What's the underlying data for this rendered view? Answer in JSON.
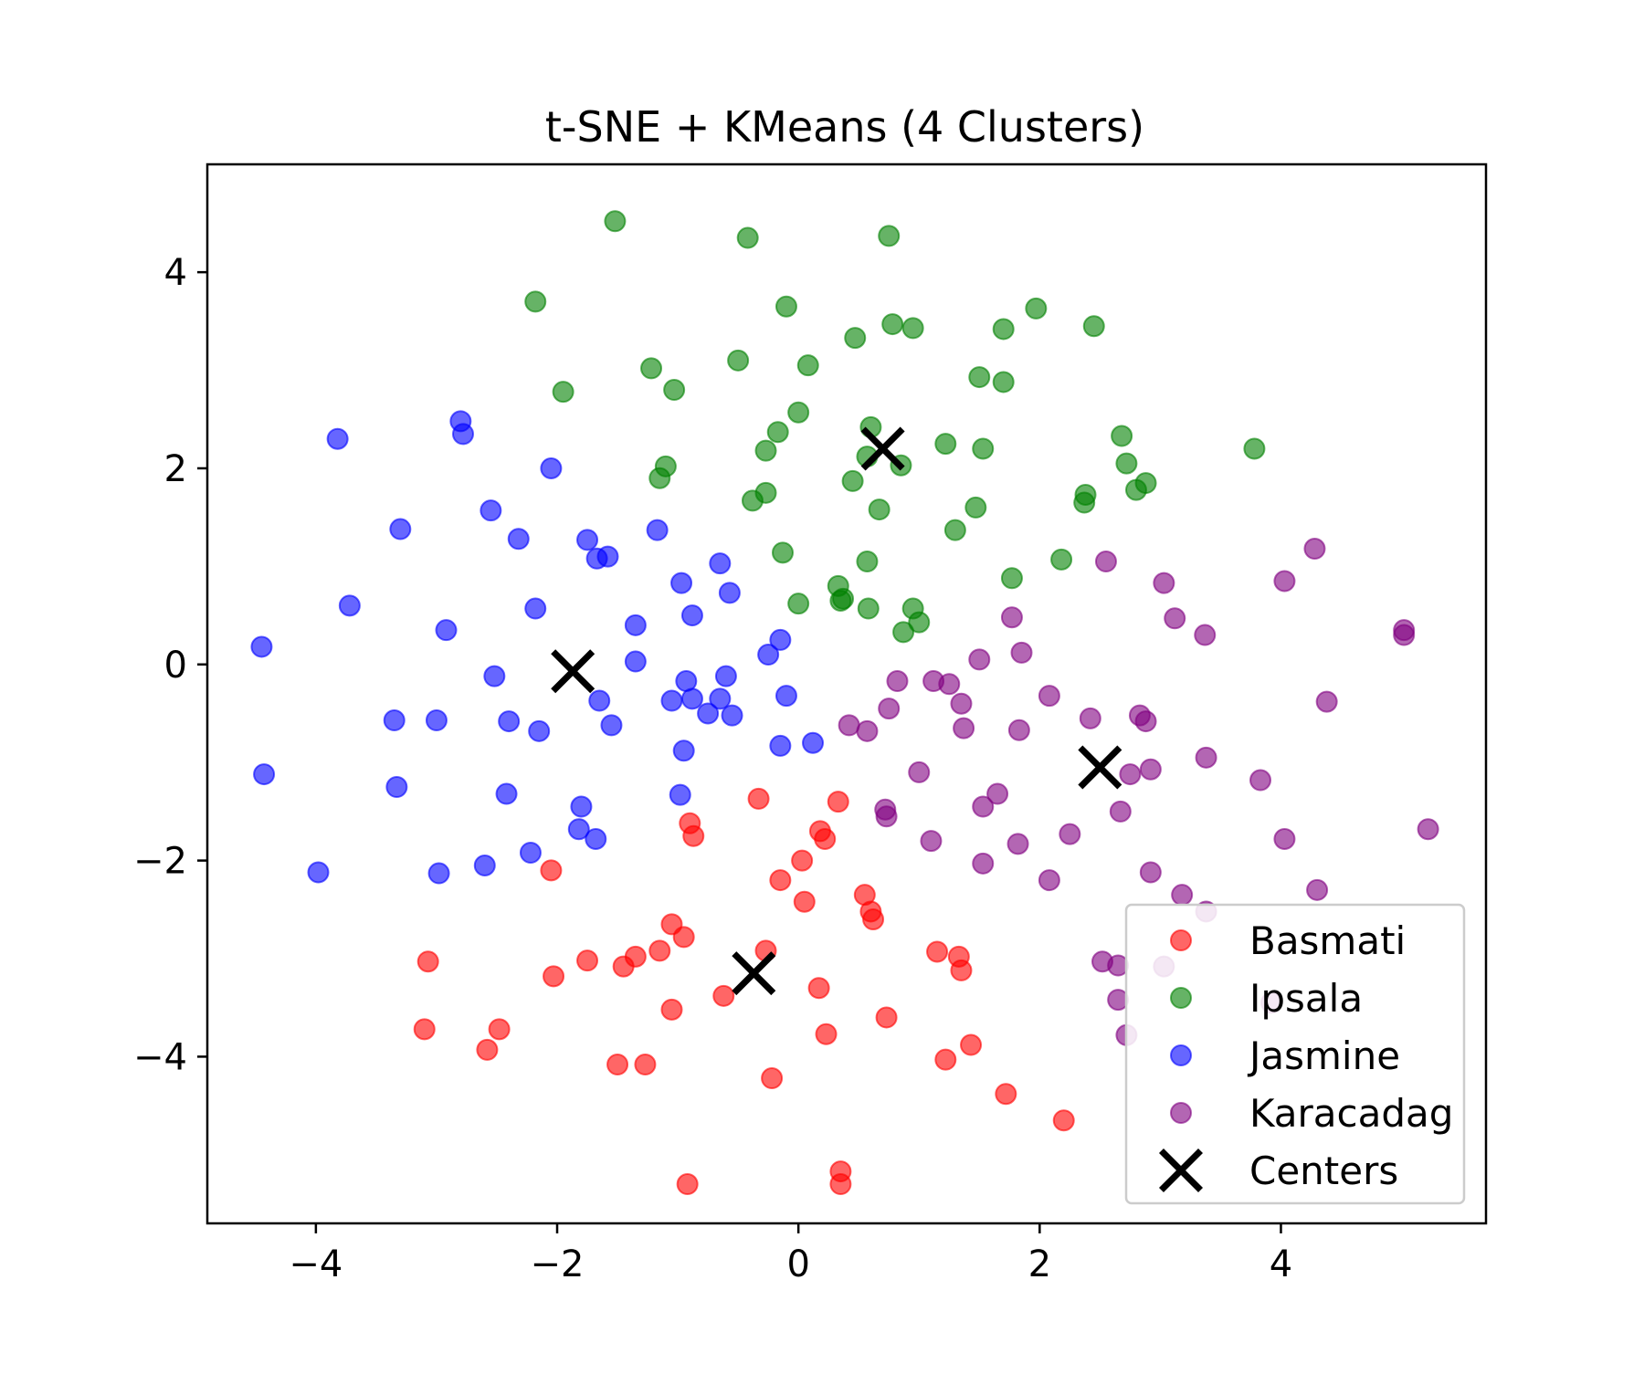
{
  "chart_data": {
    "type": "scatter",
    "title": "t-SNE + KMeans (4 Clusters)",
    "xlabel": "",
    "ylabel": "",
    "xlim": [
      -4.9,
      5.7
    ],
    "ylim": [
      -5.7,
      5.1
    ],
    "xticks": [
      -4,
      -2,
      0,
      2,
      4
    ],
    "xtick_labels": [
      "−4",
      "−2",
      "0",
      "2",
      "4"
    ],
    "yticks": [
      4,
      2,
      0,
      -2,
      -4
    ],
    "ytick_labels": [
      "4",
      "2",
      "0",
      "−2",
      "−4"
    ],
    "grid": false,
    "legend_position": "lower right",
    "marker_alpha": 0.6,
    "series": [
      {
        "name": "Basmati",
        "color": "#ff0000",
        "marker": "circle",
        "points": [
          [
            -2.05,
            -2.1
          ],
          [
            -2.03,
            -3.18
          ],
          [
            -1.75,
            -3.02
          ],
          [
            -1.45,
            -3.08
          ],
          [
            -1.35,
            -2.98
          ],
          [
            -1.15,
            -2.92
          ],
          [
            -1.05,
            -2.65
          ],
          [
            -0.95,
            -2.78
          ],
          [
            -0.9,
            -1.62
          ],
          [
            -0.87,
            -1.75
          ],
          [
            -1.05,
            -3.52
          ],
          [
            -1.5,
            -4.08
          ],
          [
            -1.27,
            -4.08
          ],
          [
            -0.92,
            -5.3
          ],
          [
            -0.62,
            -3.38
          ],
          [
            -0.27,
            -2.92
          ],
          [
            -0.33,
            -1.37
          ],
          [
            -0.15,
            -2.2
          ],
          [
            0.03,
            -2.0
          ],
          [
            0.05,
            -2.42
          ],
          [
            0.18,
            -1.7
          ],
          [
            0.22,
            -1.78
          ],
          [
            0.33,
            -1.4
          ],
          [
            0.55,
            -2.35
          ],
          [
            0.6,
            -2.52
          ],
          [
            0.62,
            -2.6
          ],
          [
            0.17,
            -3.3
          ],
          [
            0.23,
            -3.77
          ],
          [
            -0.22,
            -4.22
          ],
          [
            0.35,
            -5.17
          ],
          [
            0.35,
            -5.3
          ],
          [
            0.73,
            -3.6
          ],
          [
            1.15,
            -2.93
          ],
          [
            1.33,
            -2.98
          ],
          [
            1.35,
            -3.12
          ],
          [
            1.22,
            -4.03
          ],
          [
            1.43,
            -3.88
          ],
          [
            1.72,
            -4.38
          ],
          [
            2.2,
            -4.65
          ],
          [
            -3.07,
            -3.03
          ],
          [
            -3.1,
            -3.72
          ],
          [
            -2.48,
            -3.72
          ],
          [
            -2.58,
            -3.93
          ]
        ]
      },
      {
        "name": "Ipsala",
        "color": "#008000",
        "marker": "circle",
        "points": [
          [
            -1.52,
            4.52
          ],
          [
            -2.18,
            3.7
          ],
          [
            -1.95,
            2.78
          ],
          [
            -1.22,
            3.02
          ],
          [
            -1.03,
            2.8
          ],
          [
            -1.1,
            2.02
          ],
          [
            -1.15,
            1.9
          ],
          [
            -0.42,
            4.35
          ],
          [
            -0.5,
            3.1
          ],
          [
            -0.1,
            3.65
          ],
          [
            0.08,
            3.05
          ],
          [
            0.0,
            2.57
          ],
          [
            -0.17,
            2.37
          ],
          [
            -0.27,
            2.18
          ],
          [
            -0.27,
            1.75
          ],
          [
            -0.38,
            1.67
          ],
          [
            -0.13,
            1.14
          ],
          [
            0.0,
            0.62
          ],
          [
            0.47,
            3.33
          ],
          [
            0.6,
            2.42
          ],
          [
            0.75,
            4.37
          ],
          [
            0.78,
            3.47
          ],
          [
            0.95,
            3.43
          ],
          [
            0.57,
            2.12
          ],
          [
            0.85,
            2.03
          ],
          [
            0.45,
            1.87
          ],
          [
            0.67,
            1.58
          ],
          [
            0.57,
            1.05
          ],
          [
            0.33,
            0.8
          ],
          [
            0.37,
            0.67
          ],
          [
            0.35,
            0.65
          ],
          [
            0.58,
            0.57
          ],
          [
            0.95,
            0.57
          ],
          [
            1.0,
            0.43
          ],
          [
            0.87,
            0.33
          ],
          [
            1.22,
            2.25
          ],
          [
            1.53,
            2.2
          ],
          [
            1.5,
            2.93
          ],
          [
            1.7,
            3.42
          ],
          [
            1.7,
            2.88
          ],
          [
            1.97,
            3.63
          ],
          [
            2.45,
            3.45
          ],
          [
            1.47,
            1.6
          ],
          [
            1.3,
            1.37
          ],
          [
            1.77,
            0.88
          ],
          [
            2.18,
            1.07
          ],
          [
            2.38,
            1.73
          ],
          [
            2.37,
            1.65
          ],
          [
            2.68,
            2.33
          ],
          [
            2.72,
            2.05
          ],
          [
            2.8,
            1.78
          ],
          [
            2.88,
            1.85
          ],
          [
            3.78,
            2.2
          ]
        ]
      },
      {
        "name": "Jasmine",
        "color": "#0000ff",
        "marker": "circle",
        "points": [
          [
            -3.82,
            2.3
          ],
          [
            -2.8,
            2.48
          ],
          [
            -2.78,
            2.35
          ],
          [
            -2.05,
            2.0
          ],
          [
            -3.3,
            1.38
          ],
          [
            -2.55,
            1.57
          ],
          [
            -2.32,
            1.28
          ],
          [
            -1.75,
            1.27
          ],
          [
            -1.67,
            1.08
          ],
          [
            -1.58,
            1.1
          ],
          [
            -1.17,
            1.37
          ],
          [
            -3.72,
            0.6
          ],
          [
            -2.92,
            0.35
          ],
          [
            -2.18,
            0.57
          ],
          [
            -1.35,
            0.4
          ],
          [
            -1.35,
            0.03
          ],
          [
            -0.97,
            0.83
          ],
          [
            -0.88,
            0.5
          ],
          [
            -0.65,
            1.03
          ],
          [
            -0.57,
            0.73
          ],
          [
            -4.45,
            0.18
          ],
          [
            -2.52,
            -0.12
          ],
          [
            -1.65,
            -0.37
          ],
          [
            -1.55,
            -0.62
          ],
          [
            -1.05,
            -0.37
          ],
          [
            -0.93,
            -0.17
          ],
          [
            -0.88,
            -0.35
          ],
          [
            -0.75,
            -0.5
          ],
          [
            -0.65,
            -0.35
          ],
          [
            -0.6,
            -0.12
          ],
          [
            -0.55,
            -0.52
          ],
          [
            -0.25,
            0.1
          ],
          [
            -0.15,
            0.25
          ],
          [
            -0.1,
            -0.32
          ],
          [
            -3.35,
            -0.57
          ],
          [
            -3.0,
            -0.57
          ],
          [
            -2.4,
            -0.58
          ],
          [
            -2.15,
            -0.68
          ],
          [
            -0.95,
            -0.88
          ],
          [
            -0.15,
            -0.83
          ],
          [
            0.12,
            -0.8
          ],
          [
            -4.43,
            -1.12
          ],
          [
            -3.33,
            -1.25
          ],
          [
            -2.42,
            -1.32
          ],
          [
            -1.8,
            -1.45
          ],
          [
            -1.82,
            -1.68
          ],
          [
            -1.68,
            -1.78
          ],
          [
            -0.98,
            -1.33
          ],
          [
            -3.98,
            -2.12
          ],
          [
            -2.98,
            -2.13
          ],
          [
            -2.6,
            -2.05
          ],
          [
            -2.22,
            -1.92
          ]
        ]
      },
      {
        "name": "Karacadag",
        "color": "#800080",
        "marker": "circle",
        "points": [
          [
            2.55,
            1.05
          ],
          [
            3.03,
            0.83
          ],
          [
            3.12,
            0.47
          ],
          [
            3.37,
            0.3
          ],
          [
            4.03,
            0.85
          ],
          [
            4.28,
            1.18
          ],
          [
            5.02,
            0.35
          ],
          [
            5.02,
            0.3
          ],
          [
            4.38,
            -0.38
          ],
          [
            1.77,
            0.48
          ],
          [
            1.85,
            0.12
          ],
          [
            1.5,
            0.05
          ],
          [
            0.82,
            -0.17
          ],
          [
            1.12,
            -0.17
          ],
          [
            1.25,
            -0.2
          ],
          [
            1.35,
            -0.4
          ],
          [
            1.37,
            -0.65
          ],
          [
            0.75,
            -0.45
          ],
          [
            0.57,
            -0.68
          ],
          [
            0.42,
            -0.62
          ],
          [
            2.08,
            -0.32
          ],
          [
            2.42,
            -0.55
          ],
          [
            1.83,
            -0.67
          ],
          [
            2.83,
            -0.52
          ],
          [
            2.88,
            -0.58
          ],
          [
            2.75,
            -1.12
          ],
          [
            2.92,
            -1.07
          ],
          [
            3.38,
            -0.95
          ],
          [
            3.83,
            -1.18
          ],
          [
            1.0,
            -1.1
          ],
          [
            0.72,
            -1.48
          ],
          [
            0.73,
            -1.55
          ],
          [
            1.65,
            -1.32
          ],
          [
            1.53,
            -1.45
          ],
          [
            1.1,
            -1.8
          ],
          [
            1.82,
            -1.83
          ],
          [
            2.25,
            -1.73
          ],
          [
            2.67,
            -1.5
          ],
          [
            1.53,
            -2.03
          ],
          [
            2.08,
            -2.2
          ],
          [
            2.92,
            -2.12
          ],
          [
            3.18,
            -2.35
          ],
          [
            3.38,
            -2.52
          ],
          [
            4.03,
            -1.78
          ],
          [
            4.3,
            -2.3
          ],
          [
            5.22,
            -1.68
          ],
          [
            2.52,
            -3.03
          ],
          [
            2.65,
            -3.07
          ],
          [
            2.65,
            -3.42
          ],
          [
            2.72,
            -3.78
          ],
          [
            3.03,
            -3.08
          ],
          [
            3.92,
            -3.45
          ]
        ]
      },
      {
        "name": "Centers",
        "color": "#000000",
        "marker": "x",
        "points": [
          [
            -1.87,
            -0.07
          ],
          [
            0.7,
            2.2
          ],
          [
            2.5,
            -1.05
          ],
          [
            -0.37,
            -3.15
          ]
        ]
      }
    ]
  }
}
